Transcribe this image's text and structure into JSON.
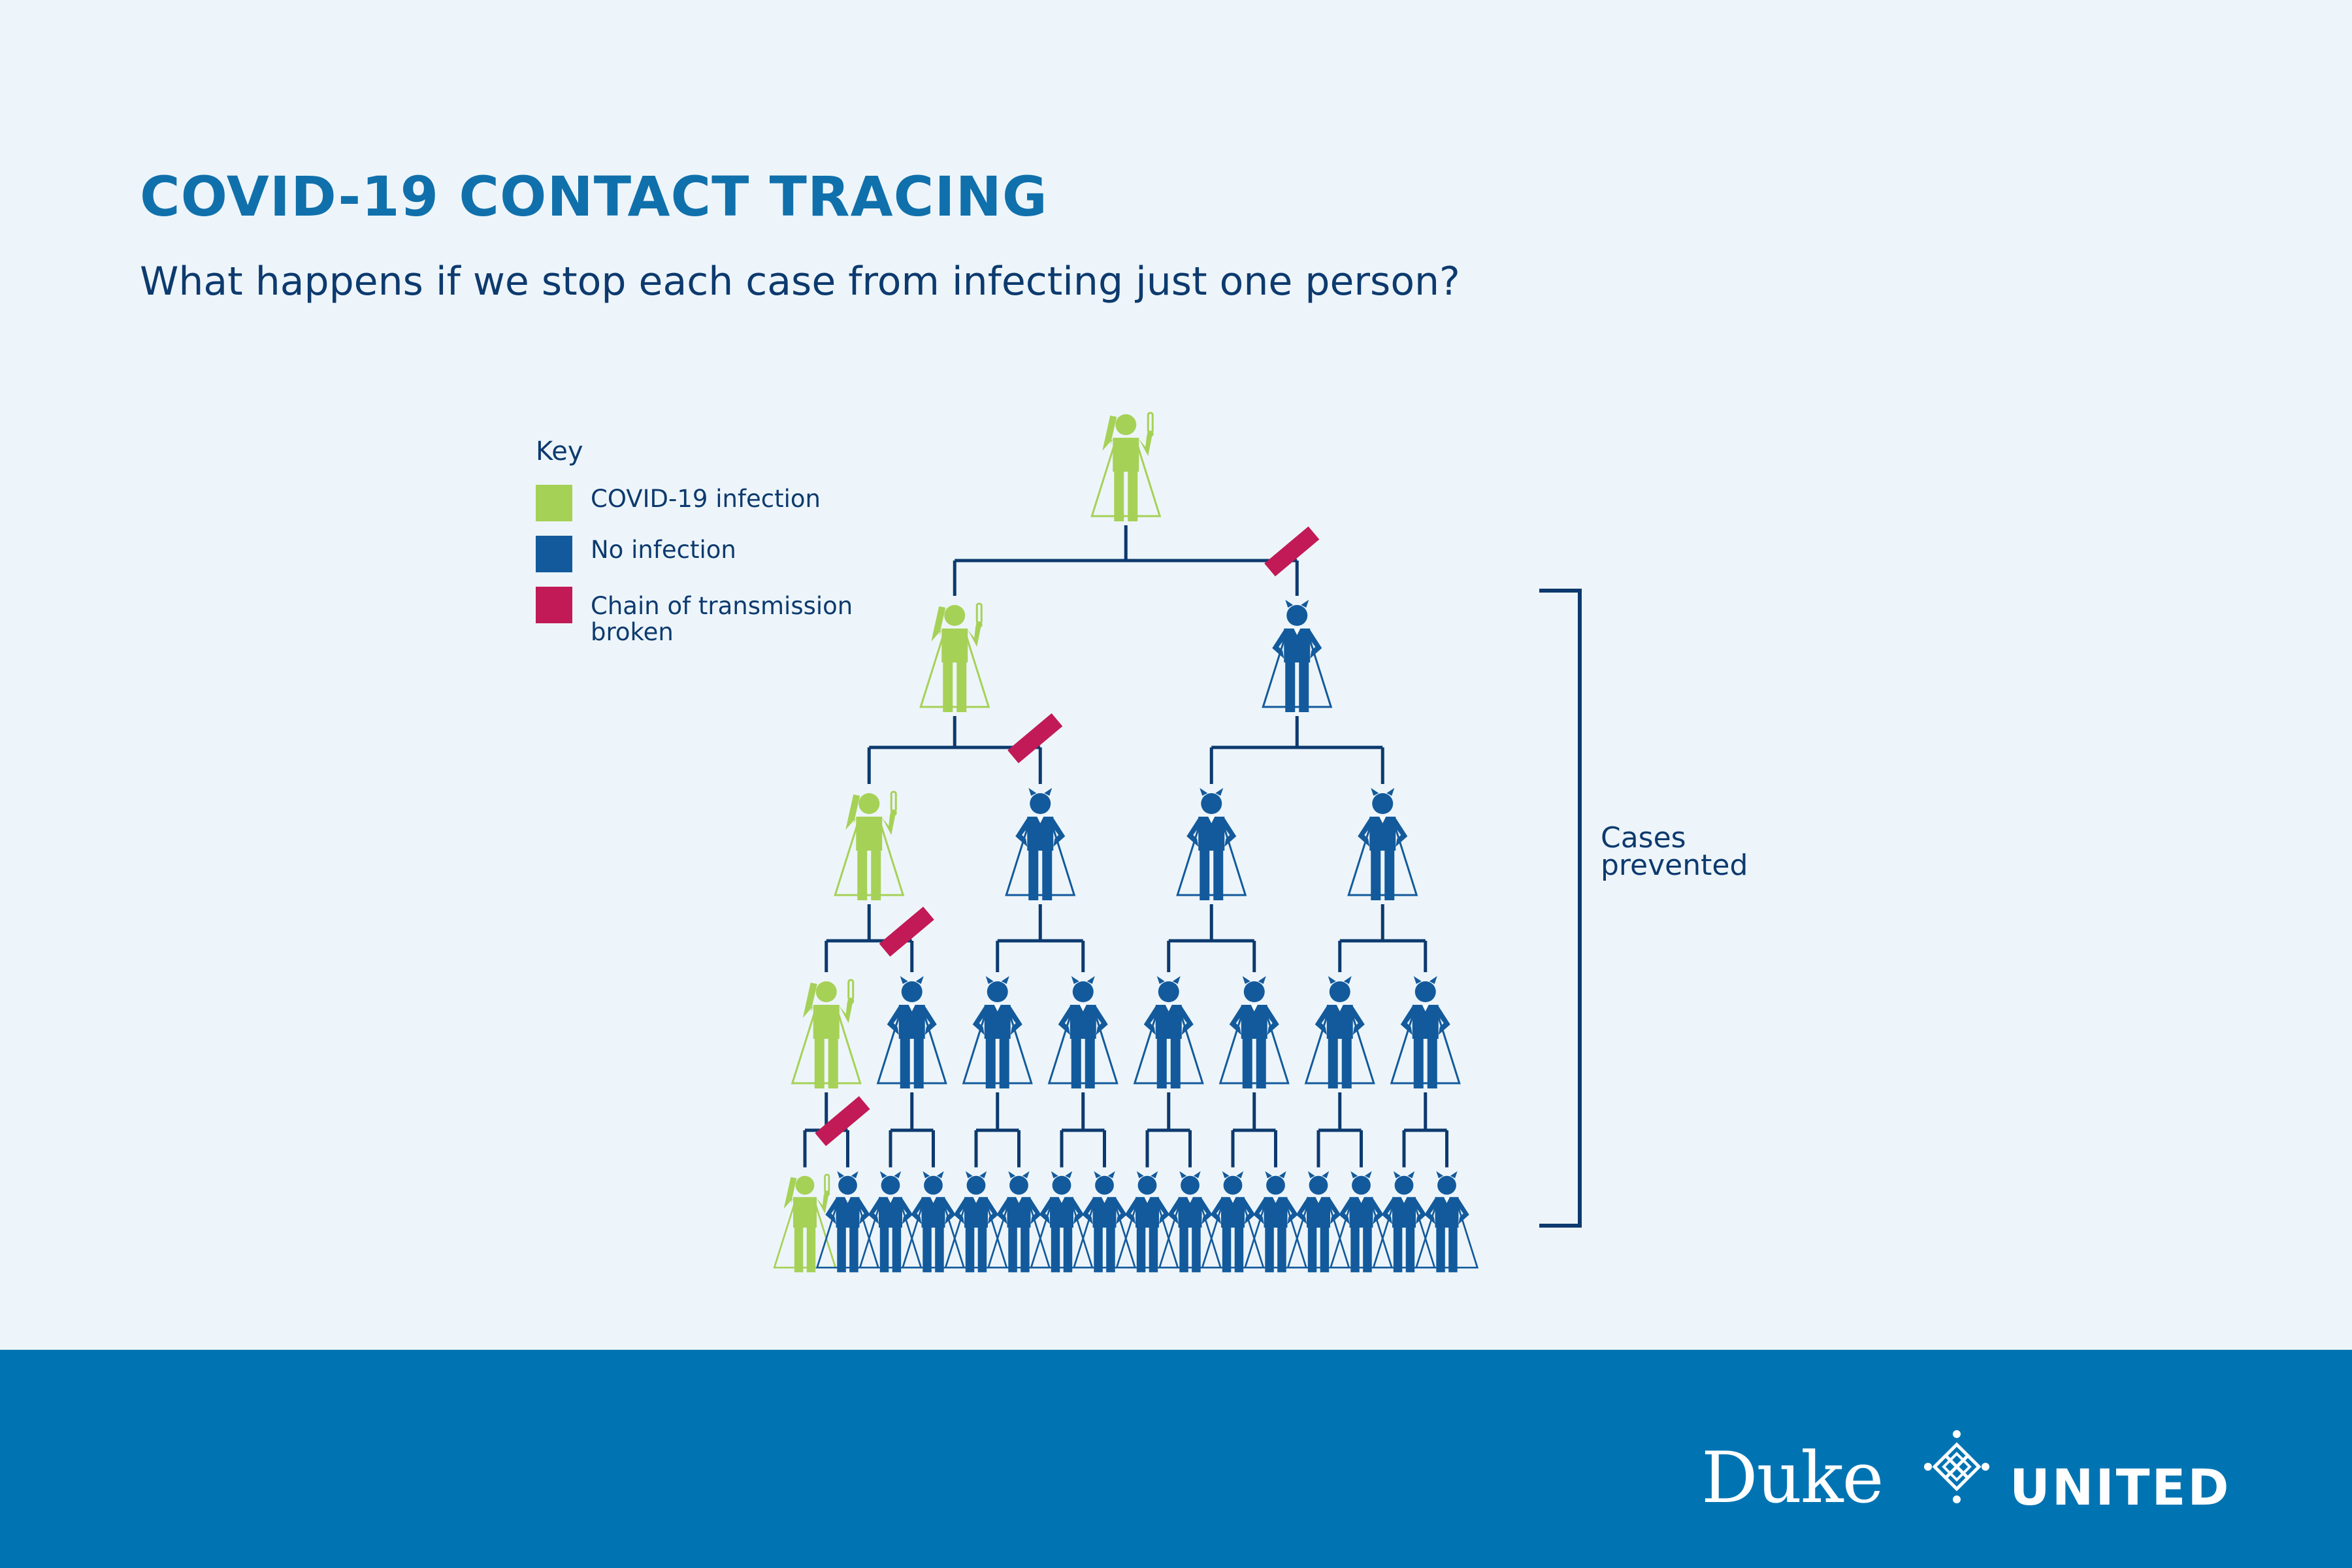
{
  "title": "COVID-19 CONTACT TRACING",
  "subtitle": "What happens if we stop each case from infecting just one person?",
  "key": {
    "title": "Key",
    "items": [
      {
        "label": "COVID-19 infection",
        "color": "#a6d157"
      },
      {
        "label": "No infection",
        "color": "#135a9c"
      },
      {
        "label": "Chain of transmission broken",
        "color": "#c21a56"
      }
    ]
  },
  "bracket_label": "Cases prevented",
  "colors": {
    "infected": "#a6d157",
    "healthy": "#135a9c",
    "broken": "#c21a56",
    "lines": "#0d3a6e",
    "title": "#1070ab",
    "footer": "#0074b3"
  },
  "tree": {
    "generations": 5,
    "people_per_generation": [
      1,
      2,
      4,
      8,
      16
    ],
    "infected_per_generation": [
      1,
      1,
      1,
      1,
      1
    ]
  },
  "footer": {
    "logo_left": "Duke",
    "logo_right": "UNITED",
    "emblem_icon": "duke-emblem-icon"
  }
}
